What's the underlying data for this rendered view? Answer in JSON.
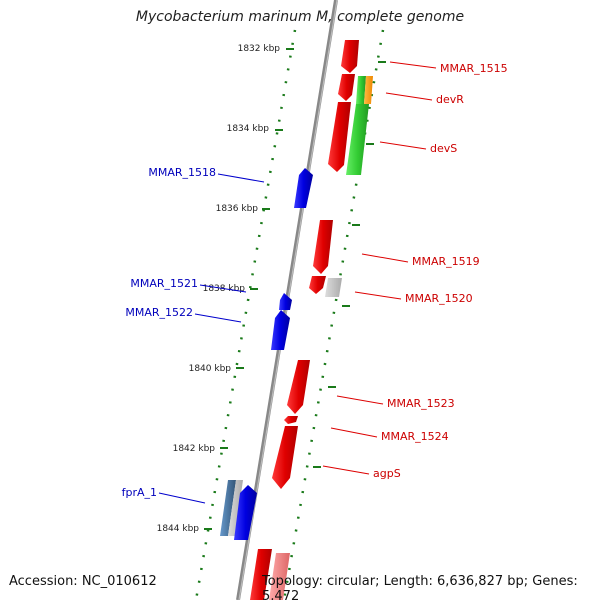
{
  "title": "Mycobacterium marinum M, complete genome",
  "footer": {
    "accession": "Accession: NC_010612",
    "topology": "Topology: circular; Length: 6,636,827 bp; Genes: 5,472"
  },
  "ticks": [
    "1832 kbp",
    "1834 kbp",
    "1836 kbp",
    "1838 kbp",
    "1840 kbp",
    "1842 kbp",
    "1844 kbp"
  ],
  "genes": {
    "forward": [
      {
        "id": "MMAR_1515",
        "label": "MMAR_1515"
      },
      {
        "id": "devR",
        "label": "devR"
      },
      {
        "id": "devS",
        "label": "devS"
      },
      {
        "id": "MMAR_1519",
        "label": "MMAR_1519"
      },
      {
        "id": "MMAR_1520",
        "label": "MMAR_1520"
      },
      {
        "id": "MMAR_1523",
        "label": "MMAR_1523"
      },
      {
        "id": "MMAR_1524",
        "label": "MMAR_1524"
      },
      {
        "id": "agpS",
        "label": "agpS"
      }
    ],
    "reverse": [
      {
        "id": "MMAR_1518",
        "label": "MMAR_1518"
      },
      {
        "id": "MMAR_1521",
        "label": "MMAR_1521"
      },
      {
        "id": "MMAR_1522",
        "label": "MMAR_1522"
      },
      {
        "id": "fprA_1",
        "label": "fprA_1"
      }
    ]
  },
  "colors": {
    "forward_gene": "#ee1111",
    "reverse_gene": "#1111dd",
    "forward_label": "#cc0000",
    "reverse_label": "#0000bb",
    "backbone": "#888888",
    "tick_mark": "#1a7a1a",
    "green_gene": "#33cc33",
    "orange_gene": "#ff9900",
    "grey_gene": "#bbbbbb",
    "steelblue_gene": "#4477aa"
  }
}
